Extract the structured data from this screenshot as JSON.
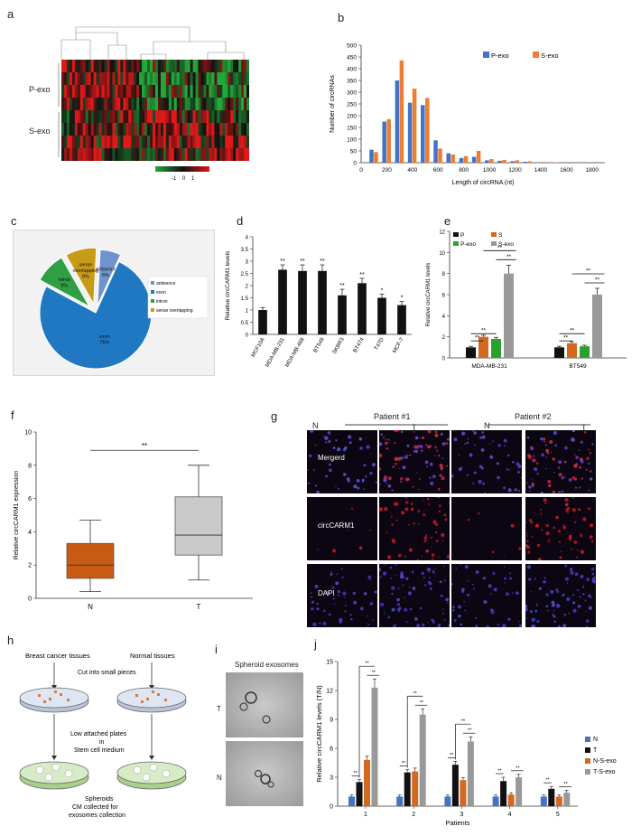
{
  "panel_labels": [
    "a",
    "b",
    "c",
    "d",
    "e",
    "f",
    "g",
    "h",
    "i",
    "j"
  ],
  "heatmap": {
    "group_labels": [
      "P-exo",
      "S-exo"
    ],
    "colorbar_ticks": [
      "-1",
      "0",
      "1"
    ],
    "colors": {
      "low": "#22a838",
      "mid": "#111111",
      "high": "#e01818"
    }
  },
  "figure_b": {
    "chart_data": {
      "type": "bar",
      "xlabel": "Length of circRNA (nt)",
      "ylabel": "Number of circRNAs",
      "xticks": [
        0,
        200,
        400,
        600,
        800,
        1000,
        1200,
        1400,
        1600,
        1800
      ],
      "yticks": [
        0,
        50,
        100,
        150,
        200,
        250,
        300,
        350,
        400,
        450,
        500
      ],
      "xlim": [
        0,
        1900
      ],
      "ylim": [
        0,
        500
      ],
      "x": [
        100,
        200,
        300,
        400,
        500,
        600,
        700,
        800,
        900,
        1000,
        1100,
        1200,
        1300,
        1400,
        1500
      ],
      "legend_position": "top-right",
      "series": [
        {
          "name": "P-exo",
          "color": "#4472c4",
          "values": [
            55,
            175,
            350,
            255,
            245,
            95,
            40,
            20,
            25,
            10,
            8,
            6,
            4,
            2,
            1
          ]
        },
        {
          "name": "S-exo",
          "color": "#ed7d31",
          "values": [
            45,
            185,
            435,
            315,
            275,
            60,
            35,
            28,
            50,
            15,
            12,
            10,
            6,
            3,
            2
          ]
        }
      ]
    }
  },
  "figure_c": {
    "chart_data": {
      "type": "pie",
      "slices": [
        {
          "label": "antisence",
          "value": 6,
          "text": "antisence\n6%",
          "color": "#6f93cc"
        },
        {
          "label": "exon",
          "value": 76,
          "text": "exon\n76%",
          "color": "#1f78c1"
        },
        {
          "label": "intron",
          "value": 9,
          "text": "intron\n9%",
          "color": "#2f9e44"
        },
        {
          "label": "sense overlapping",
          "value": 9,
          "text": "sense\noverlapping\n9%",
          "color": "#c79b16"
        }
      ],
      "legend_position": "right"
    }
  },
  "figure_d": {
    "chart_data": {
      "type": "bar",
      "ylabel": "Relative circCARM1 levels",
      "yticks": [
        0,
        0.5,
        1,
        1.5,
        2,
        2.5,
        3,
        3.5,
        4
      ],
      "ylim": [
        0,
        4
      ],
      "categories": [
        "MCF10A",
        "MDA-MB-231",
        "MDA-MB-468",
        "BT549",
        "SKBR3",
        "BT474",
        "T47D",
        "MCF-7"
      ],
      "values": [
        1.0,
        2.65,
        2.6,
        2.6,
        1.6,
        2.1,
        1.5,
        1.2
      ],
      "errors": [
        0.1,
        0.2,
        0.25,
        0.25,
        0.25,
        0.2,
        0.15,
        0.15
      ],
      "significance": [
        "",
        "**",
        "**",
        "**",
        "**",
        "**",
        "*",
        "*"
      ],
      "color": "#111111"
    }
  },
  "figure_e": {
    "chart_data": {
      "type": "bar",
      "ylabel": "Relative circCARM1 levels",
      "yticks": [
        0,
        2,
        4,
        6,
        8,
        10,
        12
      ],
      "ylim": [
        0,
        12
      ],
      "categories": [
        "MDA-MB-231",
        "BT549"
      ],
      "series": [
        {
          "name": "P",
          "color": "#111111",
          "values": [
            1.0,
            1.0
          ],
          "errors": [
            0.1,
            0.1
          ]
        },
        {
          "name": "S",
          "color": "#d2691e",
          "values": [
            2.0,
            1.4
          ],
          "errors": [
            0.15,
            0.15
          ]
        },
        {
          "name": "P-exo",
          "color": "#2ca02c",
          "values": [
            1.8,
            1.1
          ],
          "errors": [
            0.15,
            0.1
          ]
        },
        {
          "name": "S-exo",
          "color": "#999999",
          "values": [
            8.0,
            6.0
          ],
          "errors": [
            0.8,
            0.6
          ]
        }
      ],
      "significance": "**"
    }
  },
  "figure_f": {
    "chart_data": {
      "type": "box",
      "ylabel": "Relative circCARM1 expression",
      "yticks": [
        0,
        2,
        4,
        6,
        8,
        10
      ],
      "ylim": [
        0,
        10
      ],
      "categories": [
        "N",
        "T"
      ],
      "boxes": [
        {
          "name": "N",
          "min": 0.4,
          "q1": 1.2,
          "median": 2.0,
          "q3": 3.3,
          "max": 4.7,
          "color": "#c85a11"
        },
        {
          "name": "T",
          "min": 1.1,
          "q1": 2.6,
          "median": 3.8,
          "q3": 6.1,
          "max": 8.0,
          "color": "#c9c9c9"
        }
      ],
      "significance": "**"
    }
  },
  "figure_g": {
    "patients": [
      "Patient #1",
      "Patient #2"
    ],
    "columns": [
      "N",
      "T",
      "N",
      "T"
    ],
    "rows": [
      "Mergerd",
      "circCARM1",
      "DAPI"
    ]
  },
  "figure_h": {
    "left_title": "Breast cancer tissues",
    "right_title": "Normal tissues",
    "step1": "Cut into small pieces",
    "step2_a": "Low attached plates",
    "step2_b": "in",
    "step2_c": "Stem cell medium",
    "step3_a": "Spheroids",
    "step3_b": "CM collected for",
    "step3_c": "exosomes collection"
  },
  "figure_i": {
    "title": "Spheroid exosomes",
    "labels": [
      "T",
      "N"
    ]
  },
  "figure_j": {
    "chart_data": {
      "type": "bar",
      "xlabel": "Patients",
      "ylabel": "Relative circCARM1 levels (T/N)",
      "yticks": [
        0,
        3,
        6,
        9,
        12,
        15
      ],
      "ylim": [
        0,
        15
      ],
      "categories": [
        "1",
        "2",
        "3",
        "4",
        "5"
      ],
      "legend_position": "right",
      "series": [
        {
          "name": "N",
          "color": "#4472c4",
          "values": [
            1.0,
            1.0,
            1.0,
            1.0,
            1.0
          ],
          "errors": [
            0.15,
            0.15,
            0.15,
            0.15,
            0.15
          ]
        },
        {
          "name": "T",
          "color": "#111111",
          "values": [
            2.5,
            3.5,
            4.3,
            2.6,
            1.8
          ],
          "errors": [
            0.25,
            0.3,
            0.35,
            0.4,
            0.25
          ]
        },
        {
          "name": "N-S-exo",
          "color": "#d2691e",
          "values": [
            4.8,
            3.6,
            2.7,
            1.2,
            1.0
          ],
          "errors": [
            0.4,
            0.35,
            0.25,
            0.2,
            0.15
          ]
        },
        {
          "name": "T-S-exo",
          "color": "#999999",
          "values": [
            12.3,
            9.5,
            6.7,
            3.0,
            1.4
          ],
          "errors": [
            0.9,
            0.6,
            0.5,
            0.3,
            0.25
          ]
        }
      ],
      "significance": "**"
    }
  }
}
